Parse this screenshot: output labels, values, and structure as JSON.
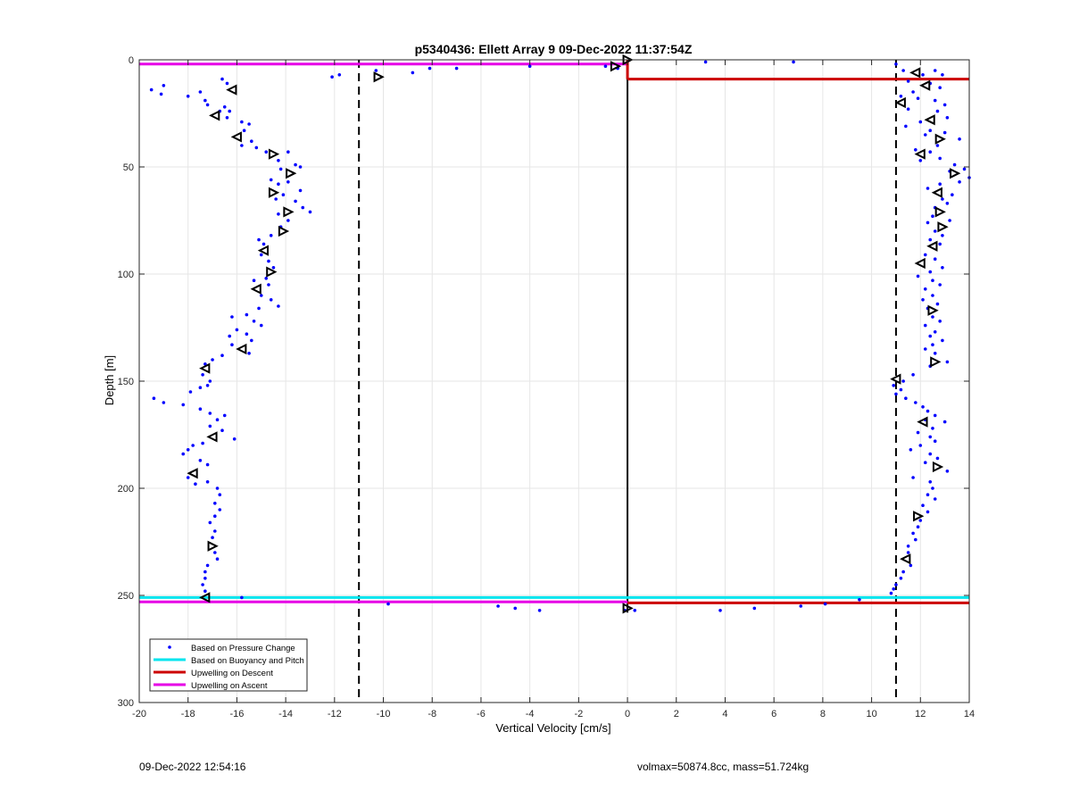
{
  "chart_data": {
    "type": "scatter",
    "title": "p5340436: Ellett Array 9 09-Dec-2022 11:37:54Z",
    "xlabel": "Vertical Velocity [cm/s]",
    "ylabel": "Depth [m]",
    "xlim": [
      -20,
      14
    ],
    "ylim": [
      0,
      300
    ],
    "y_reversed": true,
    "grid": true,
    "xticks": [
      "-20",
      "-18",
      "-16",
      "-14",
      "-12",
      "-10",
      "-8",
      "-6",
      "-4",
      "-2",
      "0",
      "2",
      "4",
      "6",
      "8",
      "10",
      "12",
      "14"
    ],
    "yticks": [
      "0",
      "50",
      "100",
      "150",
      "200",
      "250",
      "300"
    ],
    "legend_position": "bottom-left",
    "legend": [
      {
        "label": "Based on Pressure Change",
        "color": "#0000ff",
        "style": "dot"
      },
      {
        "label": "Based on Buoyancy and Pitch",
        "color": "#00e5ee",
        "style": "line"
      },
      {
        "label": "Upwelling on Descent",
        "color": "#cc0000",
        "style": "line"
      },
      {
        "label": "Upwelling on Ascent",
        "color": "#e600e6",
        "style": "line"
      }
    ],
    "reference_lines": {
      "dashed_x": [
        -11,
        11
      ],
      "solid_x": [
        0
      ],
      "buoyancy_depth": 251,
      "ascent_upwelling": [
        {
          "depth": 2,
          "x_from": -20,
          "x_to": 0
        },
        {
          "depth": 253,
          "x_from": -20,
          "x_to": 0
        }
      ],
      "descent_upwelling": [
        {
          "depth": 9,
          "x_from": 0,
          "x_to": 14
        },
        {
          "depth": 253.5,
          "x_from": 0,
          "x_to": 14
        }
      ]
    },
    "triangle_markers": [
      {
        "x": -16.2,
        "y": 14,
        "dir": "left"
      },
      {
        "x": -16.9,
        "y": 26,
        "dir": "left"
      },
      {
        "x": -16.0,
        "y": 36,
        "dir": "left"
      },
      {
        "x": -14.5,
        "y": 44,
        "dir": "right"
      },
      {
        "x": -13.8,
        "y": 53,
        "dir": "right"
      },
      {
        "x": -14.5,
        "y": 62,
        "dir": "right"
      },
      {
        "x": -13.9,
        "y": 71,
        "dir": "right"
      },
      {
        "x": -14.1,
        "y": 80,
        "dir": "right"
      },
      {
        "x": -14.9,
        "y": 89,
        "dir": "left"
      },
      {
        "x": -14.6,
        "y": 99,
        "dir": "right"
      },
      {
        "x": -15.2,
        "y": 107,
        "dir": "left"
      },
      {
        "x": -15.8,
        "y": 135,
        "dir": "left"
      },
      {
        "x": -17.3,
        "y": 144,
        "dir": "left"
      },
      {
        "x": -17.0,
        "y": 176,
        "dir": "left"
      },
      {
        "x": -17.8,
        "y": 193,
        "dir": "left"
      },
      {
        "x": -17.0,
        "y": 227,
        "dir": "right"
      },
      {
        "x": -17.3,
        "y": 251,
        "dir": "left"
      },
      {
        "x": -10.2,
        "y": 8,
        "dir": "right"
      },
      {
        "x": -0.5,
        "y": 3,
        "dir": "right"
      },
      {
        "x": 0.0,
        "y": 0,
        "dir": "right"
      },
      {
        "x": 11.8,
        "y": 6,
        "dir": "left"
      },
      {
        "x": 12.2,
        "y": 12,
        "dir": "left"
      },
      {
        "x": 11.2,
        "y": 20,
        "dir": "left"
      },
      {
        "x": 12.4,
        "y": 28,
        "dir": "left"
      },
      {
        "x": 12.8,
        "y": 37,
        "dir": "right"
      },
      {
        "x": 12.0,
        "y": 44,
        "dir": "left"
      },
      {
        "x": 13.4,
        "y": 53,
        "dir": "right"
      },
      {
        "x": 12.7,
        "y": 62,
        "dir": "left"
      },
      {
        "x": 12.8,
        "y": 71,
        "dir": "right"
      },
      {
        "x": 12.9,
        "y": 78,
        "dir": "right"
      },
      {
        "x": 12.5,
        "y": 87,
        "dir": "left"
      },
      {
        "x": 12.0,
        "y": 95,
        "dir": "left"
      },
      {
        "x": 12.5,
        "y": 117,
        "dir": "right"
      },
      {
        "x": 12.6,
        "y": 141,
        "dir": "right"
      },
      {
        "x": 11.0,
        "y": 149,
        "dir": "left"
      },
      {
        "x": 12.1,
        "y": 169,
        "dir": "left"
      },
      {
        "x": 12.7,
        "y": 190,
        "dir": "right"
      },
      {
        "x": 11.9,
        "y": 213,
        "dir": "right"
      },
      {
        "x": 11.4,
        "y": 233,
        "dir": "left"
      },
      {
        "x": 0.0,
        "y": 256,
        "dir": "right"
      }
    ],
    "series": [
      {
        "name": "Based on Pressure Change",
        "points": [
          [
            -19.5,
            14
          ],
          [
            -19.0,
            12
          ],
          [
            -19.1,
            16
          ],
          [
            -18.0,
            17
          ],
          [
            -17.5,
            15
          ],
          [
            -17.3,
            19
          ],
          [
            -17.2,
            21
          ],
          [
            -16.6,
            9
          ],
          [
            -16.4,
            11
          ],
          [
            -16.5,
            22
          ],
          [
            -16.7,
            24
          ],
          [
            -16.4,
            27
          ],
          [
            -16.3,
            24
          ],
          [
            -15.8,
            29
          ],
          [
            -15.5,
            30
          ],
          [
            -15.7,
            33
          ],
          [
            -15.4,
            38
          ],
          [
            -15.2,
            41
          ],
          [
            -15.8,
            40
          ],
          [
            -14.8,
            43
          ],
          [
            -14.3,
            47
          ],
          [
            -13.9,
            43
          ],
          [
            -13.6,
            49
          ],
          [
            -13.4,
            50
          ],
          [
            -14.2,
            51
          ],
          [
            -13.9,
            57
          ],
          [
            -14.6,
            56
          ],
          [
            -14.3,
            58
          ],
          [
            -13.4,
            61
          ],
          [
            -14.4,
            65
          ],
          [
            -14.1,
            63
          ],
          [
            -13.6,
            66
          ],
          [
            -13.3,
            69
          ],
          [
            -13.0,
            71
          ],
          [
            -14.3,
            72
          ],
          [
            -13.9,
            75
          ],
          [
            -14.2,
            78
          ],
          [
            -14.6,
            82
          ],
          [
            -14.9,
            86
          ],
          [
            -15.1,
            84
          ],
          [
            -15.0,
            91
          ],
          [
            -14.7,
            94
          ],
          [
            -14.5,
            97
          ],
          [
            -14.8,
            102
          ],
          [
            -14.7,
            105
          ],
          [
            -15.3,
            103
          ],
          [
            -15.0,
            110
          ],
          [
            -14.6,
            112
          ],
          [
            -14.3,
            115
          ],
          [
            -15.1,
            116
          ],
          [
            -15.6,
            119
          ],
          [
            -16.2,
            120
          ],
          [
            -15.3,
            122
          ],
          [
            -15.0,
            124
          ],
          [
            -16.0,
            126
          ],
          [
            -15.6,
            128
          ],
          [
            -15.4,
            131
          ],
          [
            -16.2,
            133
          ],
          [
            -16.3,
            129
          ],
          [
            -15.5,
            137
          ],
          [
            -16.6,
            138
          ],
          [
            -17.0,
            140
          ],
          [
            -17.3,
            142
          ],
          [
            -17.4,
            147
          ],
          [
            -17.1,
            150
          ],
          [
            -17.5,
            153
          ],
          [
            -17.2,
            152
          ],
          [
            -17.9,
            155
          ],
          [
            -19.4,
            158
          ],
          [
            -19.0,
            160
          ],
          [
            -18.2,
            161
          ],
          [
            -17.5,
            163
          ],
          [
            -17.1,
            165
          ],
          [
            -16.5,
            166
          ],
          [
            -16.8,
            168
          ],
          [
            -17.1,
            171
          ],
          [
            -16.6,
            173
          ],
          [
            -16.1,
            177
          ],
          [
            -17.4,
            179
          ],
          [
            -17.8,
            180
          ],
          [
            -18.0,
            182
          ],
          [
            -18.2,
            184
          ],
          [
            -17.5,
            187
          ],
          [
            -17.2,
            189
          ],
          [
            -18.0,
            195
          ],
          [
            -17.7,
            198
          ],
          [
            -17.2,
            197
          ],
          [
            -16.8,
            200
          ],
          [
            -16.7,
            203
          ],
          [
            -16.9,
            207
          ],
          [
            -16.7,
            210
          ],
          [
            -16.9,
            213
          ],
          [
            -17.1,
            216
          ],
          [
            -16.9,
            220
          ],
          [
            -17.0,
            223
          ],
          [
            -16.9,
            230
          ],
          [
            -16.8,
            233
          ],
          [
            -17.2,
            236
          ],
          [
            -17.3,
            239
          ],
          [
            -17.3,
            242
          ],
          [
            -17.4,
            245
          ],
          [
            -17.3,
            248
          ],
          [
            -15.8,
            251
          ],
          [
            -12.1,
            8
          ],
          [
            -11.8,
            7
          ],
          [
            -10.3,
            5
          ],
          [
            -8.8,
            6
          ],
          [
            -8.1,
            4
          ],
          [
            -7.0,
            4
          ],
          [
            -4.0,
            3
          ],
          [
            -0.9,
            3
          ],
          [
            -0.4,
            4
          ],
          [
            3.2,
            1
          ],
          [
            6.8,
            1
          ],
          [
            -9.8,
            254
          ],
          [
            -5.3,
            255
          ],
          [
            -4.6,
            256
          ],
          [
            -3.6,
            257
          ],
          [
            3.8,
            257
          ],
          [
            5.2,
            256
          ],
          [
            7.1,
            255
          ],
          [
            8.1,
            254
          ],
          [
            9.5,
            252
          ],
          [
            0.3,
            257
          ],
          [
            -0.1,
            257
          ],
          [
            11.0,
            2
          ],
          [
            11.3,
            5
          ],
          [
            12.1,
            7
          ],
          [
            12.6,
            5
          ],
          [
            12.9,
            7
          ],
          [
            11.5,
            10
          ],
          [
            12.4,
            11
          ],
          [
            12.8,
            13
          ],
          [
            11.7,
            15
          ],
          [
            11.2,
            17
          ],
          [
            11.9,
            18
          ],
          [
            12.6,
            19
          ],
          [
            13.0,
            21
          ],
          [
            11.5,
            23
          ],
          [
            12.7,
            24
          ],
          [
            13.1,
            27
          ],
          [
            12.0,
            29
          ],
          [
            11.4,
            31
          ],
          [
            12.4,
            33
          ],
          [
            13.0,
            34
          ],
          [
            12.2,
            35
          ],
          [
            13.6,
            37
          ],
          [
            12.7,
            40
          ],
          [
            11.8,
            42
          ],
          [
            12.4,
            43
          ],
          [
            12.8,
            46
          ],
          [
            12.0,
            47
          ],
          [
            13.4,
            49
          ],
          [
            13.8,
            51
          ],
          [
            13.2,
            52
          ],
          [
            14.0,
            55
          ],
          [
            13.6,
            57
          ],
          [
            12.8,
            58
          ],
          [
            12.3,
            60
          ],
          [
            13.3,
            63
          ],
          [
            12.9,
            65
          ],
          [
            13.1,
            67
          ],
          [
            12.6,
            69
          ],
          [
            12.5,
            73
          ],
          [
            13.2,
            75
          ],
          [
            12.3,
            76
          ],
          [
            12.6,
            80
          ],
          [
            12.9,
            82
          ],
          [
            12.4,
            84
          ],
          [
            12.8,
            86
          ],
          [
            12.2,
            91
          ],
          [
            12.6,
            93
          ],
          [
            12.9,
            97
          ],
          [
            12.4,
            99
          ],
          [
            11.9,
            101
          ],
          [
            12.5,
            103
          ],
          [
            12.8,
            105
          ],
          [
            12.2,
            107
          ],
          [
            12.5,
            110
          ],
          [
            12.1,
            112
          ],
          [
            12.7,
            114
          ],
          [
            12.3,
            116
          ],
          [
            12.5,
            120
          ],
          [
            12.8,
            122
          ],
          [
            12.2,
            124
          ],
          [
            12.6,
            127
          ],
          [
            12.4,
            129
          ],
          [
            12.9,
            131
          ],
          [
            12.5,
            133
          ],
          [
            12.2,
            135
          ],
          [
            12.6,
            137
          ],
          [
            13.1,
            141
          ],
          [
            12.4,
            143
          ],
          [
            11.7,
            147
          ],
          [
            11.3,
            150
          ],
          [
            10.9,
            152
          ],
          [
            11.2,
            154
          ],
          [
            11.0,
            156
          ],
          [
            11.4,
            158
          ],
          [
            11.8,
            160
          ],
          [
            12.1,
            162
          ],
          [
            12.3,
            164
          ],
          [
            12.6,
            166
          ],
          [
            12.2,
            168
          ],
          [
            13.0,
            169
          ],
          [
            12.5,
            172
          ],
          [
            11.9,
            174
          ],
          [
            12.4,
            176
          ],
          [
            12.6,
            178
          ],
          [
            12.0,
            180
          ],
          [
            11.6,
            182
          ],
          [
            12.4,
            184
          ],
          [
            12.7,
            186
          ],
          [
            12.2,
            188
          ],
          [
            13.1,
            192
          ],
          [
            11.7,
            195
          ],
          [
            12.4,
            197
          ],
          [
            12.5,
            200
          ],
          [
            12.3,
            203
          ],
          [
            12.6,
            205
          ],
          [
            12.1,
            208
          ],
          [
            12.3,
            211
          ],
          [
            12.0,
            215
          ],
          [
            11.9,
            218
          ],
          [
            11.7,
            221
          ],
          [
            11.8,
            224
          ],
          [
            11.5,
            227
          ],
          [
            11.5,
            230
          ],
          [
            11.6,
            236
          ],
          [
            11.3,
            239
          ],
          [
            11.2,
            242
          ],
          [
            11.0,
            245
          ],
          [
            10.9,
            247
          ],
          [
            10.8,
            249
          ]
        ]
      }
    ]
  },
  "footer": {
    "date": "09-Dec-2022 12:54:16",
    "info": "volmax=50874.8cc, mass=51.724kg"
  }
}
